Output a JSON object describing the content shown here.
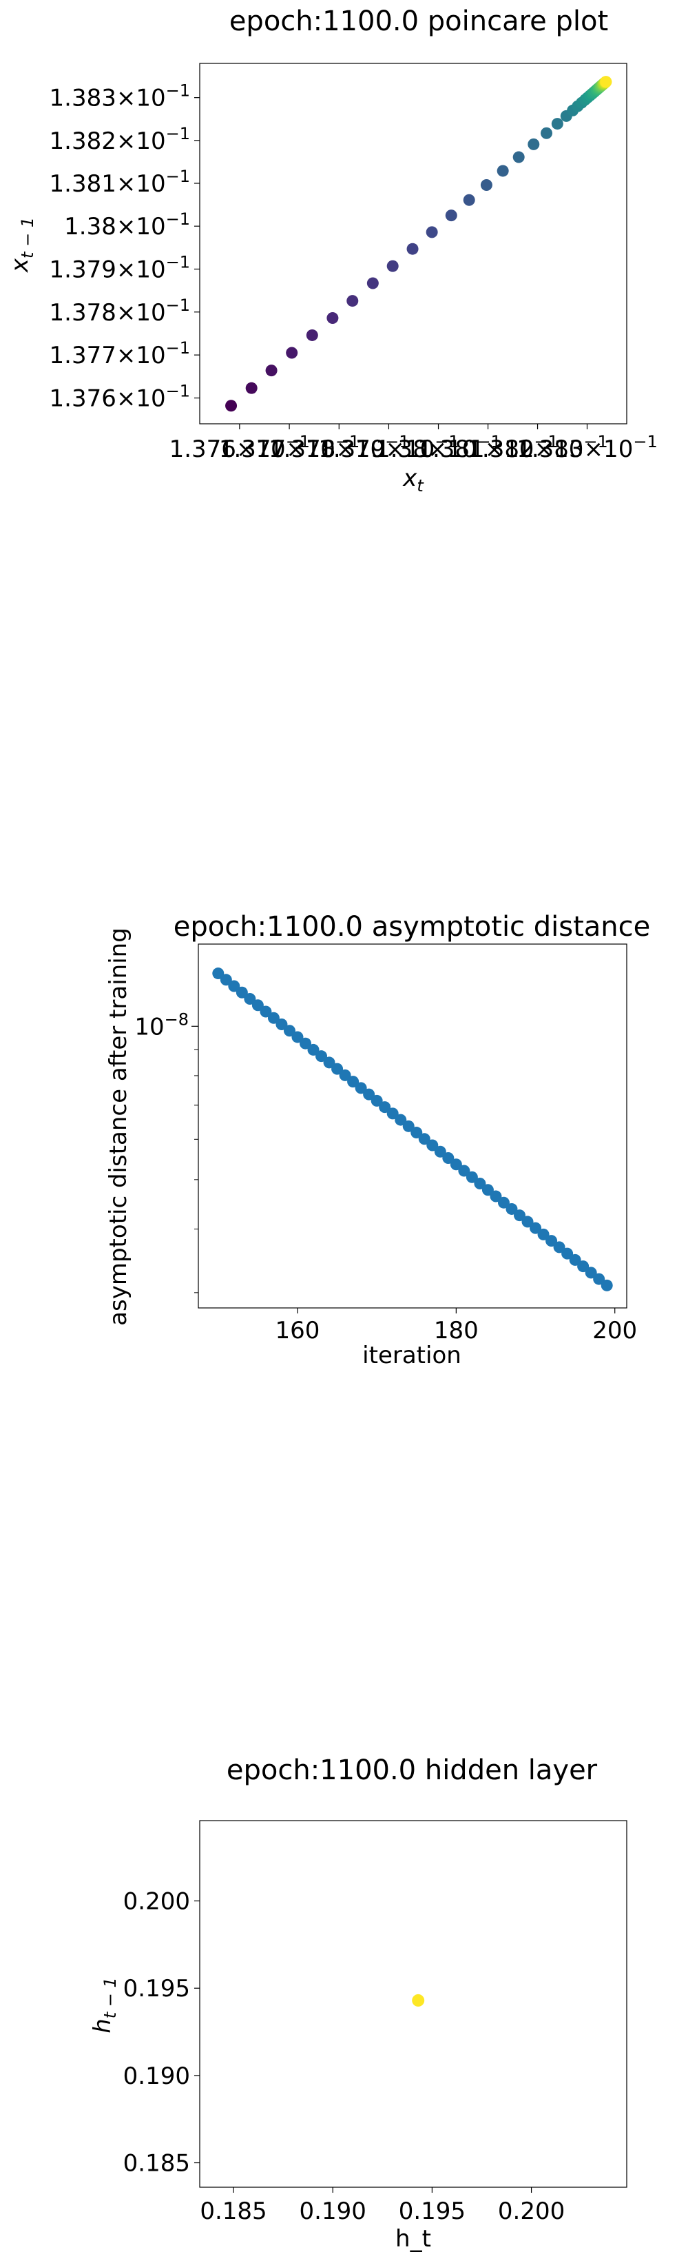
{
  "chart_data": [
    {
      "type": "scatter",
      "title": "epoch:1100.0 poincare plot",
      "xlabel": "x",
      "xlabel_sub": "t",
      "ylabel": "x",
      "ylabel_sub": "t − 1",
      "xscale": "log",
      "yscale": "log",
      "xlim": [
        0.13752,
        0.13838
      ],
      "ylim": [
        0.13754,
        0.13838
      ],
      "x_ticks": [
        {
          "value": 0.1376,
          "mant": "1.376",
          "base": "×10",
          "exp": "−1"
        },
        {
          "value": 0.1377,
          "mant": "1.377",
          "base": "×10",
          "exp": "−1"
        },
        {
          "value": 0.1378,
          "mant": "1.378",
          "base": "×10",
          "exp": "−1"
        },
        {
          "value": 0.1379,
          "mant": "1.379",
          "base": "×10",
          "exp": "−1"
        },
        {
          "value": 0.138,
          "mant": "1.38",
          "base": "×10",
          "exp": "−1"
        },
        {
          "value": 0.1381,
          "mant": "1.381",
          "base": "×10",
          "exp": "−1"
        },
        {
          "value": 0.1382,
          "mant": "1.382",
          "base": "×10",
          "exp": "−1"
        },
        {
          "value": 0.1383,
          "mant": "1.383",
          "base": "×10",
          "exp": "−1"
        }
      ],
      "y_ticks": [
        {
          "value": 0.1376,
          "mant": "1.376",
          "base": "×10",
          "exp": "−1"
        },
        {
          "value": 0.1377,
          "mant": "1.377",
          "base": "×10",
          "exp": "−1"
        },
        {
          "value": 0.1378,
          "mant": "1.378",
          "base": "×10",
          "exp": "−1"
        },
        {
          "value": 0.1379,
          "mant": "1.379",
          "base": "×10",
          "exp": "−1"
        },
        {
          "value": 0.138,
          "mant": "1.38",
          "base": "×10",
          "exp": "−1"
        },
        {
          "value": 0.1381,
          "mant": "1.381",
          "base": "×10",
          "exp": "−1"
        },
        {
          "value": 0.1382,
          "mant": "1.382",
          "base": "×10",
          "exp": "−1"
        },
        {
          "value": 0.1383,
          "mant": "1.383",
          "base": "×10",
          "exp": "−1"
        }
      ],
      "x": [
        0.137583,
        0.137624,
        0.137664,
        0.137705,
        0.137746,
        0.137787,
        0.137827,
        0.137868,
        0.137908,
        0.137948,
        0.137987,
        0.138026,
        0.138062,
        0.138097,
        0.13813,
        0.138162,
        0.138192,
        0.138218,
        0.13824,
        0.138258,
        0.138271,
        0.138281,
        0.138289,
        0.138296,
        0.138301,
        0.138306,
        0.13831,
        0.138313,
        0.138316,
        0.138319,
        0.138321,
        0.138323,
        0.138325,
        0.138327,
        0.138328,
        0.13833,
        0.138331,
        0.138332,
        0.138333,
        0.138334,
        0.138335,
        0.138336,
        0.138337,
        0.138337,
        0.138338,
        0.138338
      ],
      "y": [
        0.137582,
        0.137623,
        0.137664,
        0.137705,
        0.137746,
        0.137786,
        0.137826,
        0.137867,
        0.137907,
        0.137947,
        0.137986,
        0.138025,
        0.138061,
        0.138096,
        0.138129,
        0.138161,
        0.138191,
        0.138217,
        0.138239,
        0.138257,
        0.13827,
        0.13828,
        0.138288,
        0.138295,
        0.1383,
        0.138305,
        0.138309,
        0.138312,
        0.138315,
        0.138318,
        0.13832,
        0.138322,
        0.138324,
        0.138326,
        0.138327,
        0.138329,
        0.13833,
        0.138331,
        0.138332,
        0.138333,
        0.138334,
        0.138335,
        0.138336,
        0.138336,
        0.138337,
        0.138337
      ],
      "colormap": "viridis",
      "colormap_stops": [
        "#440154",
        "#482878",
        "#3e4989",
        "#31688e",
        "#26828e",
        "#1f9e89",
        "#35b779",
        "#6ece58",
        "#b5de2b",
        "#fde725"
      ]
    },
    {
      "type": "scatter",
      "title": "epoch:1100.0 asymptotic distance",
      "xlabel": "iteration",
      "ylabel": "asymptotic distance after training",
      "yscale": "log",
      "xlim": [
        147.5,
        201.5
      ],
      "ylim": [
        2.8e-09,
        1.45e-08
      ],
      "x_ticks": [
        160,
        180,
        200
      ],
      "y_major_tick": {
        "value": 1e-08,
        "base": "10",
        "exp": "−8"
      },
      "y_minor_ticks": [
        3e-09,
        4e-09,
        5e-09,
        6e-09,
        7e-09,
        8e-09,
        9e-09
      ],
      "x_start": 150,
      "x_end": 199,
      "y_start": 1.27e-08,
      "y_end": 3.1e-09,
      "marker_color": "#1f77b4"
    },
    {
      "type": "scatter",
      "title": "epoch:1100.0 hidden layer",
      "xlabel": "h_t",
      "ylabel": "h",
      "ylabel_sub": "t − 1",
      "xlim": [
        0.1833,
        0.2048
      ],
      "ylim": [
        0.1836,
        0.2046
      ],
      "x_ticks": [
        {
          "value": 0.185,
          "label": "0.185"
        },
        {
          "value": 0.19,
          "label": "0.190"
        },
        {
          "value": 0.195,
          "label": "0.195"
        },
        {
          "value": 0.2,
          "label": "0.200"
        }
      ],
      "y_ticks": [
        {
          "value": 0.185,
          "label": "0.185"
        },
        {
          "value": 0.19,
          "label": "0.190"
        },
        {
          "value": 0.195,
          "label": "0.195"
        },
        {
          "value": 0.2,
          "label": "0.200"
        }
      ],
      "x": [
        0.1943
      ],
      "y": [
        0.1943
      ],
      "marker_color": "#fde725"
    }
  ]
}
